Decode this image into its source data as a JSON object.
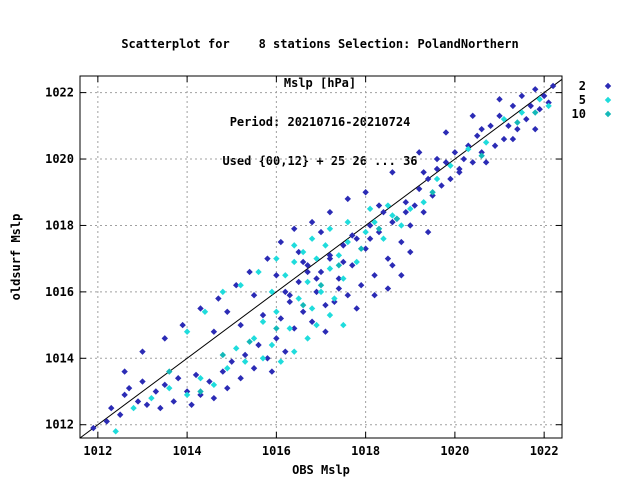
{
  "chart_data": {
    "type": "scatter",
    "title_lines": [
      "Scatterplot for    8 stations Selection: PolandNorthern",
      "Mslp [hPa]",
      "Period: 20210716-20210724",
      "Used {00,12} + 25 26 ... 36"
    ],
    "xlabel": "OBS Mslp",
    "ylabel": "oldsurf Mslp",
    "xlim": [
      1011.6,
      1022.4
    ],
    "ylim": [
      1011.6,
      1022.5
    ],
    "xticks": [
      1012,
      1014,
      1016,
      1018,
      1020,
      1022
    ],
    "yticks": [
      1012,
      1014,
      1016,
      1018,
      1020,
      1022
    ],
    "grid": true,
    "diagonal_line": true,
    "legend_position": "right-outside-top",
    "series": [
      {
        "name": "2",
        "color": "#2b2bb5",
        "points": [
          [
            1011.9,
            1011.9
          ],
          [
            1012.2,
            1012.1
          ],
          [
            1012.3,
            1012.5
          ],
          [
            1012.5,
            1012.3
          ],
          [
            1012.6,
            1012.9
          ],
          [
            1012.7,
            1013.1
          ],
          [
            1012.9,
            1012.7
          ],
          [
            1013.0,
            1013.3
          ],
          [
            1013.1,
            1012.6
          ],
          [
            1013.3,
            1013.0
          ],
          [
            1013.4,
            1012.5
          ],
          [
            1013.5,
            1013.2
          ],
          [
            1013.7,
            1012.7
          ],
          [
            1013.8,
            1013.4
          ],
          [
            1014.0,
            1013.0
          ],
          [
            1014.1,
            1012.6
          ],
          [
            1014.2,
            1013.5
          ],
          [
            1014.3,
            1012.9
          ],
          [
            1014.5,
            1013.3
          ],
          [
            1014.6,
            1012.8
          ],
          [
            1014.8,
            1013.6
          ],
          [
            1014.9,
            1013.1
          ],
          [
            1015.0,
            1013.9
          ],
          [
            1015.2,
            1013.4
          ],
          [
            1015.3,
            1014.1
          ],
          [
            1015.5,
            1013.7
          ],
          [
            1015.6,
            1014.4
          ],
          [
            1015.8,
            1014.0
          ],
          [
            1015.9,
            1013.6
          ],
          [
            1016.0,
            1014.6
          ],
          [
            1016.1,
            1015.2
          ],
          [
            1016.2,
            1014.2
          ],
          [
            1016.3,
            1015.7
          ],
          [
            1016.4,
            1014.9
          ],
          [
            1016.5,
            1016.3
          ],
          [
            1016.6,
            1015.4
          ],
          [
            1016.7,
            1016.8
          ],
          [
            1016.8,
            1015.1
          ],
          [
            1016.9,
            1016.0
          ],
          [
            1017.0,
            1016.6
          ],
          [
            1017.1,
            1014.8
          ],
          [
            1017.2,
            1017.1
          ],
          [
            1017.3,
            1015.7
          ],
          [
            1017.4,
            1016.4
          ],
          [
            1017.5,
            1017.4
          ],
          [
            1017.6,
            1015.9
          ],
          [
            1017.7,
            1016.8
          ],
          [
            1017.8,
            1017.6
          ],
          [
            1017.9,
            1016.2
          ],
          [
            1018.0,
            1017.3
          ],
          [
            1018.1,
            1018.0
          ],
          [
            1018.2,
            1016.5
          ],
          [
            1018.3,
            1017.8
          ],
          [
            1018.4,
            1018.4
          ],
          [
            1018.5,
            1017.0
          ],
          [
            1018.6,
            1016.8
          ],
          [
            1018.7,
            1018.2
          ],
          [
            1018.8,
            1017.5
          ],
          [
            1018.9,
            1018.7
          ],
          [
            1019.0,
            1018.0
          ],
          [
            1019.1,
            1018.6
          ],
          [
            1019.2,
            1019.1
          ],
          [
            1019.3,
            1018.4
          ],
          [
            1019.4,
            1019.4
          ],
          [
            1019.5,
            1018.9
          ],
          [
            1019.6,
            1019.7
          ],
          [
            1019.7,
            1019.2
          ],
          [
            1019.8,
            1019.9
          ],
          [
            1019.9,
            1019.4
          ],
          [
            1020.0,
            1020.2
          ],
          [
            1020.1,
            1019.7
          ],
          [
            1020.3,
            1020.4
          ],
          [
            1020.4,
            1019.9
          ],
          [
            1020.5,
            1020.7
          ],
          [
            1020.6,
            1020.2
          ],
          [
            1020.8,
            1021.0
          ],
          [
            1020.9,
            1020.4
          ],
          [
            1021.0,
            1021.3
          ],
          [
            1021.1,
            1020.6
          ],
          [
            1021.3,
            1021.6
          ],
          [
            1021.4,
            1020.9
          ],
          [
            1021.5,
            1021.9
          ],
          [
            1021.6,
            1021.2
          ],
          [
            1021.8,
            1022.1
          ],
          [
            1021.9,
            1021.5
          ],
          [
            1022.0,
            1021.9
          ],
          [
            1022.1,
            1021.7
          ],
          [
            1022.2,
            1022.2
          ],
          [
            1012.6,
            1013.6
          ],
          [
            1013.0,
            1014.2
          ],
          [
            1013.5,
            1014.6
          ],
          [
            1013.9,
            1015.0
          ],
          [
            1014.3,
            1015.5
          ],
          [
            1014.7,
            1015.8
          ],
          [
            1015.1,
            1016.2
          ],
          [
            1015.4,
            1016.6
          ],
          [
            1015.8,
            1017.0
          ],
          [
            1016.1,
            1017.5
          ],
          [
            1016.4,
            1017.9
          ],
          [
            1016.8,
            1018.1
          ],
          [
            1017.2,
            1018.4
          ],
          [
            1017.6,
            1018.8
          ],
          [
            1018.0,
            1019.0
          ],
          [
            1018.6,
            1019.6
          ],
          [
            1019.2,
            1020.2
          ],
          [
            1019.8,
            1020.8
          ],
          [
            1020.4,
            1021.3
          ],
          [
            1021.0,
            1021.8
          ],
          [
            1014.6,
            1014.8
          ],
          [
            1014.9,
            1015.4
          ],
          [
            1015.2,
            1015.0
          ],
          [
            1015.5,
            1015.9
          ],
          [
            1015.7,
            1015.3
          ],
          [
            1016.0,
            1016.5
          ],
          [
            1016.2,
            1016.0
          ],
          [
            1016.5,
            1017.2
          ],
          [
            1016.7,
            1016.6
          ],
          [
            1017.0,
            1017.8
          ],
          [
            1017.2,
            1017.0
          ],
          [
            1017.5,
            1016.9
          ],
          [
            1017.7,
            1017.7
          ],
          [
            1018.1,
            1017.6
          ],
          [
            1018.3,
            1018.6
          ],
          [
            1018.6,
            1018.1
          ],
          [
            1018.9,
            1018.4
          ],
          [
            1019.3,
            1019.6
          ],
          [
            1019.6,
            1020.0
          ],
          [
            1020.2,
            1020.0
          ],
          [
            1020.6,
            1020.9
          ],
          [
            1021.2,
            1021.0
          ],
          [
            1021.7,
            1021.6
          ],
          [
            1016.3,
            1015.9
          ],
          [
            1016.6,
            1016.9
          ],
          [
            1016.9,
            1016.4
          ],
          [
            1017.1,
            1015.6
          ],
          [
            1017.4,
            1016.1
          ],
          [
            1017.8,
            1015.5
          ],
          [
            1018.2,
            1015.9
          ],
          [
            1018.5,
            1016.1
          ],
          [
            1018.8,
            1016.5
          ],
          [
            1019.0,
            1017.2
          ],
          [
            1019.4,
            1017.8
          ],
          [
            1020.1,
            1019.6
          ],
          [
            1020.7,
            1019.9
          ],
          [
            1021.3,
            1020.6
          ],
          [
            1021.8,
            1020.9
          ]
        ]
      },
      {
        "name": "5",
        "color": "#1fdcdc",
        "points": [
          [
            1012.4,
            1011.8
          ],
          [
            1012.8,
            1012.5
          ],
          [
            1013.2,
            1012.8
          ],
          [
            1013.6,
            1013.1
          ],
          [
            1014.0,
            1012.9
          ],
          [
            1014.3,
            1013.4
          ],
          [
            1014.6,
            1013.2
          ],
          [
            1014.9,
            1013.7
          ],
          [
            1015.1,
            1014.3
          ],
          [
            1015.3,
            1013.9
          ],
          [
            1015.5,
            1014.6
          ],
          [
            1015.7,
            1015.1
          ],
          [
            1015.9,
            1016.0
          ],
          [
            1016.0,
            1015.4
          ],
          [
            1016.2,
            1016.5
          ],
          [
            1016.3,
            1014.9
          ],
          [
            1016.4,
            1016.9
          ],
          [
            1016.5,
            1015.8
          ],
          [
            1016.6,
            1017.2
          ],
          [
            1016.7,
            1016.3
          ],
          [
            1016.8,
            1015.5
          ],
          [
            1016.9,
            1017.0
          ],
          [
            1017.0,
            1016.0
          ],
          [
            1017.1,
            1017.4
          ],
          [
            1017.2,
            1016.7
          ],
          [
            1017.3,
            1015.8
          ],
          [
            1017.4,
            1017.1
          ],
          [
            1017.5,
            1016.4
          ],
          [
            1017.6,
            1017.5
          ],
          [
            1017.8,
            1016.9
          ],
          [
            1018.0,
            1017.8
          ],
          [
            1018.2,
            1018.1
          ],
          [
            1018.4,
            1017.6
          ],
          [
            1018.6,
            1018.3
          ],
          [
            1018.8,
            1018.0
          ],
          [
            1019.0,
            1018.5
          ],
          [
            1019.3,
            1018.7
          ],
          [
            1019.6,
            1019.4
          ],
          [
            1019.9,
            1019.8
          ],
          [
            1020.3,
            1020.3
          ],
          [
            1020.7,
            1020.5
          ],
          [
            1021.1,
            1021.2
          ],
          [
            1021.5,
            1021.4
          ],
          [
            1021.9,
            1021.8
          ],
          [
            1022.1,
            1021.6
          ],
          [
            1014.0,
            1014.8
          ],
          [
            1014.4,
            1015.4
          ],
          [
            1014.8,
            1016.0
          ],
          [
            1015.2,
            1016.2
          ],
          [
            1015.6,
            1016.6
          ],
          [
            1016.0,
            1017.0
          ],
          [
            1016.4,
            1017.4
          ],
          [
            1016.8,
            1017.6
          ],
          [
            1017.2,
            1017.9
          ],
          [
            1017.6,
            1018.1
          ],
          [
            1018.1,
            1018.5
          ],
          [
            1018.5,
            1018.6
          ],
          [
            1015.7,
            1014.0
          ],
          [
            1015.9,
            1014.4
          ],
          [
            1016.1,
            1013.9
          ],
          [
            1016.4,
            1014.2
          ],
          [
            1016.7,
            1014.6
          ],
          [
            1016.9,
            1015.0
          ],
          [
            1017.2,
            1015.3
          ],
          [
            1017.5,
            1015.0
          ]
        ]
      },
      {
        "name": "10",
        "color": "#14b8b8",
        "points": [
          [
            1013.6,
            1013.6
          ],
          [
            1014.3,
            1013.0
          ],
          [
            1014.8,
            1014.1
          ],
          [
            1015.4,
            1014.5
          ],
          [
            1016.0,
            1014.9
          ],
          [
            1016.6,
            1015.6
          ],
          [
            1017.0,
            1016.2
          ],
          [
            1017.4,
            1016.8
          ],
          [
            1017.9,
            1017.3
          ],
          [
            1018.3,
            1017.9
          ],
          [
            1018.7,
            1018.2
          ],
          [
            1019.5,
            1019.0
          ],
          [
            1020.6,
            1020.1
          ],
          [
            1021.4,
            1021.1
          ],
          [
            1021.8,
            1021.4
          ]
        ]
      }
    ]
  }
}
